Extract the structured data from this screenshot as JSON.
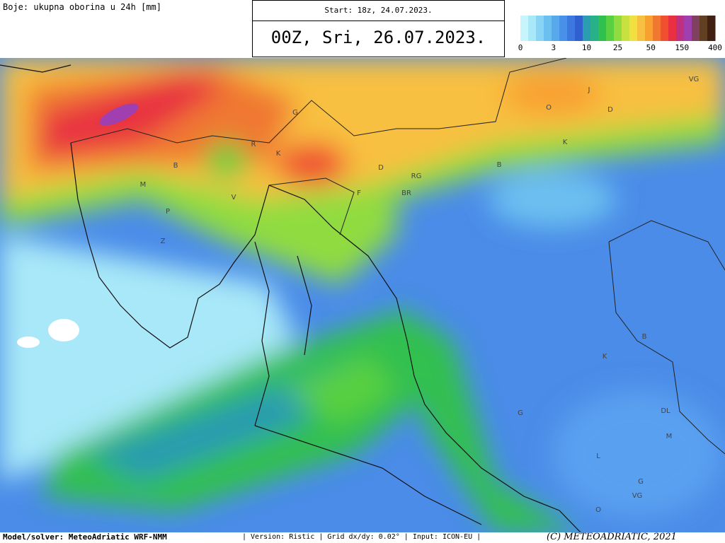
{
  "header": {
    "legend_title": "Boje: ukupna oborina u 24h [mm]",
    "start": "Start: 18z, 24.07.2023.",
    "valid": "00Z, Sri, 26.07.2023."
  },
  "colorbar": {
    "colors": [
      "#c8f4fc",
      "#a8e8f8",
      "#88d4f4",
      "#6cc0f0",
      "#58a8ec",
      "#4890e8",
      "#3c78e0",
      "#3060d0",
      "#2c9cb0",
      "#28b088",
      "#30c050",
      "#58d040",
      "#90dc40",
      "#c8e040",
      "#f0e040",
      "#f8c040",
      "#f8a030",
      "#f07830",
      "#f05030",
      "#e83040",
      "#c03080",
      "#a040b0",
      "#804060",
      "#604020",
      "#402010"
    ],
    "ticks": [
      "0",
      "3",
      "10",
      "25",
      "50",
      "150",
      "400"
    ]
  },
  "map_labels": [
    "VG",
    "J",
    "O",
    "D",
    "K",
    "B",
    "G",
    "R",
    "K",
    "B",
    "M",
    "D",
    "RG",
    "BR",
    "F",
    "DL",
    "M",
    "G",
    "L",
    "G",
    "K",
    "B",
    "O",
    "VG",
    "V",
    "P",
    "Z"
  ],
  "footer": {
    "model": "Model/solver: MeteoAdriatic WRF-NMM",
    "info": "| Version: Ristic | Grid dx/dy: 0.02° | Input: ICON-EU |",
    "copyright": "(C) METEOADRIATIC, 2021"
  }
}
